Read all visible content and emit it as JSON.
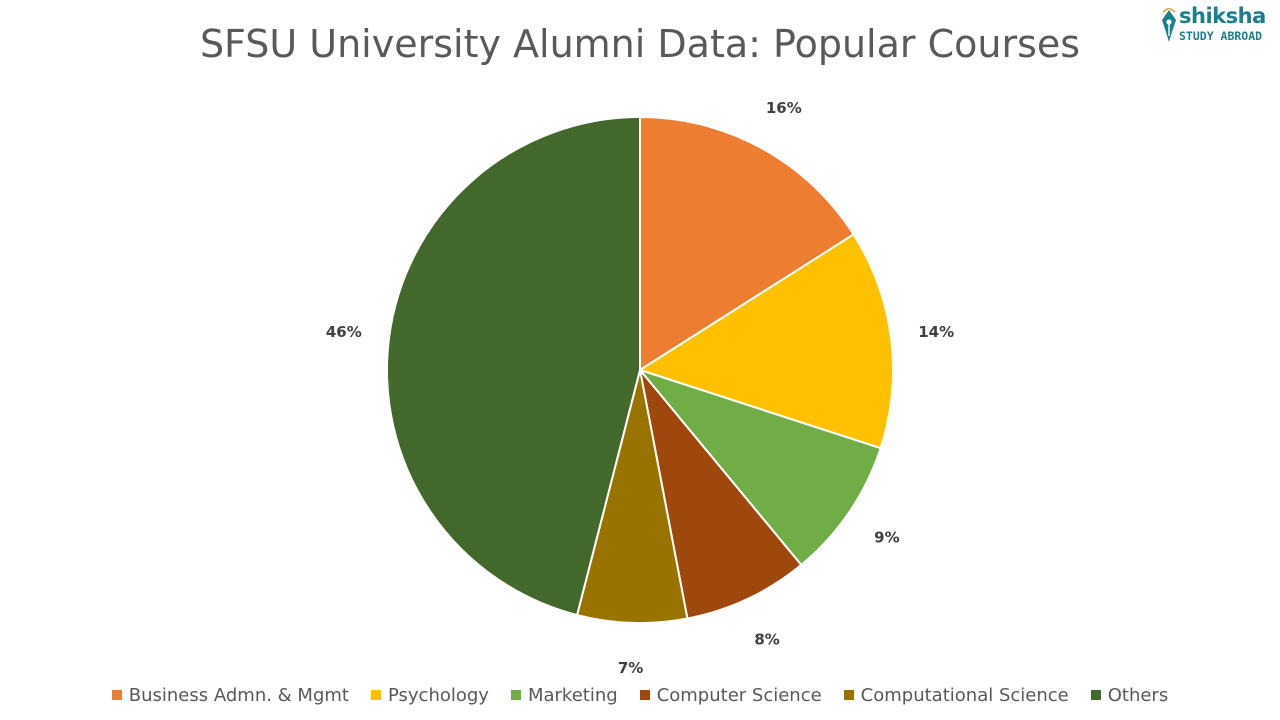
{
  "chart_data": {
    "type": "pie",
    "title": "SFSU University Alumni Data: Popular Courses",
    "categories": [
      "Business Admn. & Mgmt",
      "Psychology",
      "Marketing",
      "Computer Science",
      "Computational Science",
      "Others"
    ],
    "values": [
      16,
      14,
      9,
      8,
      7,
      46
    ],
    "value_labels": [
      "16%",
      "14%",
      "9%",
      "8%",
      "7%",
      "46%"
    ],
    "colors": [
      "#ed7d31",
      "#ffc000",
      "#70ad47",
      "#9e480e",
      "#997300",
      "#43682b"
    ],
    "legend_position": "bottom",
    "start_angle_deg": 0,
    "direction": "clockwise"
  },
  "logo": {
    "name": "shiksha",
    "tagline": "STUDY ABROAD",
    "color": "#1e7f8c"
  }
}
